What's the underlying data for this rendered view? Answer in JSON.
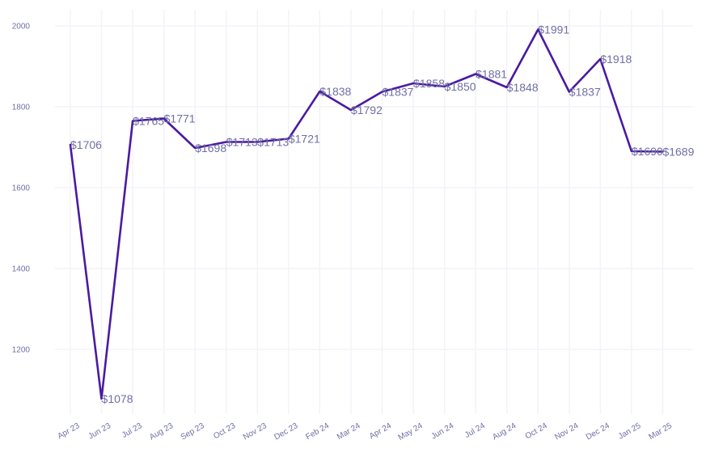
{
  "chart_data": {
    "type": "line",
    "title": "",
    "xlabel": "",
    "ylabel": "",
    "ylim": [
      1040,
      2040
    ],
    "y_ticks": [
      1200,
      1400,
      1600,
      1800,
      2000
    ],
    "grid": true,
    "line_color": "#4a1aa0",
    "label_color": "#6f6fa6",
    "categories": [
      "Apr 23",
      "Jun 23",
      "Jul 23",
      "Aug 23",
      "Sep 23",
      "Oct 23",
      "Nov 23",
      "Dec 23",
      "Feb 24",
      "Mar 24",
      "Apr 24",
      "May 24",
      "Jun 24",
      "Jul 24",
      "Aug 24",
      "Oct 24",
      "Nov 24",
      "Dec 24",
      "Jan 25",
      "Mar 25"
    ],
    "values": [
      1706,
      1078,
      1765,
      1771,
      1698,
      1713,
      1713,
      1721,
      1838,
      1792,
      1837,
      1858,
      1850,
      1881,
      1848,
      1991,
      1837,
      1918,
      1690,
      1689
    ],
    "data_labels": [
      "$1706",
      "$1078",
      "$1765",
      "$1771",
      "$1698",
      "$1713",
      "$1713",
      "$1721",
      "$1838",
      "$1792",
      "$1837",
      "$1858",
      "$1850",
      "$1881",
      "$1848",
      "$1991",
      "$1837",
      "$1918",
      "$1690",
      "$1689"
    ]
  }
}
